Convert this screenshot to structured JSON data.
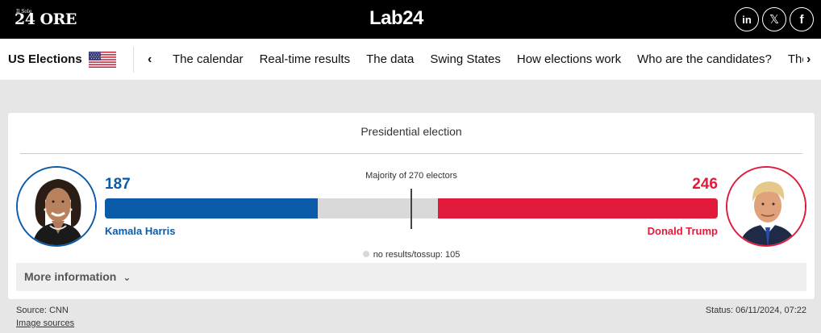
{
  "header": {
    "publisher_small": "Il Sole",
    "publisher": "24 ORE",
    "logo_main": "Lab2",
    "logo_digit": "4",
    "social": [
      {
        "name": "linkedin-icon",
        "glyph": "in"
      },
      {
        "name": "x-icon",
        "glyph": "𝕏"
      },
      {
        "name": "facebook-icon",
        "glyph": "f"
      }
    ]
  },
  "nav": {
    "title": "US Elections",
    "prev_glyph": "‹",
    "next_glyph": "›",
    "items": [
      "The calendar",
      "Real-time results",
      "The data",
      "Swing States",
      "How elections work",
      "Who are the candidates?",
      "The"
    ]
  },
  "card": {
    "title": "Presidential election",
    "majority_label": "Majority of 270 electors",
    "harris": {
      "votes": "187",
      "name": "Kamala Harris",
      "color": "#0a5ba8"
    },
    "trump": {
      "votes": "246",
      "name": "Donald Trump",
      "color": "#e21b3c"
    },
    "tossup_label": "no results/tossup: 105",
    "more_info": "More information",
    "more_caret": "⌄"
  },
  "footer": {
    "source": "Source: CNN",
    "image_sources": "Image sources",
    "status": "Status: 06/11/2024, 07:22"
  },
  "chart_data": {
    "type": "bar",
    "categories": [
      "Kamala Harris",
      "no results/tossup",
      "Donald Trump"
    ],
    "values": [
      187,
      105,
      246
    ],
    "total": 538,
    "majority": 270,
    "colors": [
      "#0a5ba8",
      "#d9d9d9",
      "#e21b3c"
    ]
  }
}
